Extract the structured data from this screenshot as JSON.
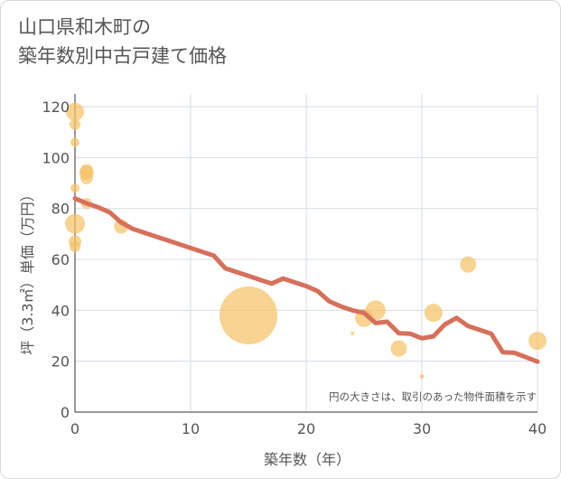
{
  "chart_title": {
    "line1": "山口県和木町の",
    "line2": "築年数別中古戸建て価格"
  },
  "colors": {
    "bubble": "#f5c266",
    "trend": "#d6705a",
    "grid": "#d4dce6",
    "text": "#555555"
  },
  "chart_data": {
    "type": "scatter",
    "title": "山口県和木町の築年数別中古戸建て価格",
    "xlabel": "築年数（年）",
    "ylabel": "坪（3.3㎡）単価（万円）",
    "xlim": [
      0,
      40
    ],
    "ylim": [
      0,
      125
    ],
    "xticks": [
      0,
      10,
      20,
      30,
      40
    ],
    "yticks": [
      0,
      20,
      40,
      60,
      80,
      100,
      120
    ],
    "grid": true,
    "annotation": "円の大きさは、取引のあった物件面積を示す",
    "points": [
      {
        "x": 0,
        "y": 118,
        "size": 10
      },
      {
        "x": 0,
        "y": 113,
        "size": 6
      },
      {
        "x": 0,
        "y": 106,
        "size": 5
      },
      {
        "x": 0,
        "y": 88,
        "size": 5
      },
      {
        "x": 0,
        "y": 74,
        "size": 11
      },
      {
        "x": 0,
        "y": 67,
        "size": 7
      },
      {
        "x": 0,
        "y": 65,
        "size": 6
      },
      {
        "x": 1,
        "y": 95,
        "size": 7
      },
      {
        "x": 1,
        "y": 94,
        "size": 8
      },
      {
        "x": 1,
        "y": 92,
        "size": 7
      },
      {
        "x": 1,
        "y": 82,
        "size": 6
      },
      {
        "x": 4,
        "y": 73,
        "size": 8
      },
      {
        "x": 15,
        "y": 38,
        "size": 32
      },
      {
        "x": 24,
        "y": 31,
        "size": 2
      },
      {
        "x": 25,
        "y": 37,
        "size": 10
      },
      {
        "x": 26,
        "y": 40,
        "size": 11
      },
      {
        "x": 28,
        "y": 25,
        "size": 9
      },
      {
        "x": 30,
        "y": 14,
        "size": 2.5
      },
      {
        "x": 31,
        "y": 39,
        "size": 10
      },
      {
        "x": 34,
        "y": 58,
        "size": 9
      },
      {
        "x": 40,
        "y": 28,
        "size": 10
      }
    ],
    "trend": [
      [
        0,
        84
      ],
      [
        1,
        82
      ],
      [
        2,
        80.5
      ],
      [
        3,
        78.5
      ],
      [
        4,
        74.5
      ],
      [
        5,
        72
      ],
      [
        6,
        70.5
      ],
      [
        7,
        69
      ],
      [
        8,
        67.5
      ],
      [
        9,
        66
      ],
      [
        10,
        64.5
      ],
      [
        11,
        63
      ],
      [
        12,
        61.5
      ],
      [
        13,
        56.5
      ],
      [
        14,
        55
      ],
      [
        15,
        53.5
      ],
      [
        16,
        52
      ],
      [
        17,
        50.5
      ],
      [
        18,
        52.5
      ],
      [
        19,
        51
      ],
      [
        20,
        49.5
      ],
      [
        21,
        47.5
      ],
      [
        22,
        43.5
      ],
      [
        23,
        41.5
      ],
      [
        24,
        40
      ],
      [
        25,
        39
      ],
      [
        26,
        35
      ],
      [
        27,
        35.5
      ],
      [
        28,
        31
      ],
      [
        29,
        30.8
      ],
      [
        30,
        29
      ],
      [
        31,
        29.8
      ],
      [
        32,
        34.5
      ],
      [
        33,
        37
      ],
      [
        34,
        33.8
      ],
      [
        35,
        32.3
      ],
      [
        36,
        30.8
      ],
      [
        37,
        23.5
      ],
      [
        38,
        23.3
      ],
      [
        39,
        21.6
      ],
      [
        40,
        19.8
      ]
    ]
  }
}
